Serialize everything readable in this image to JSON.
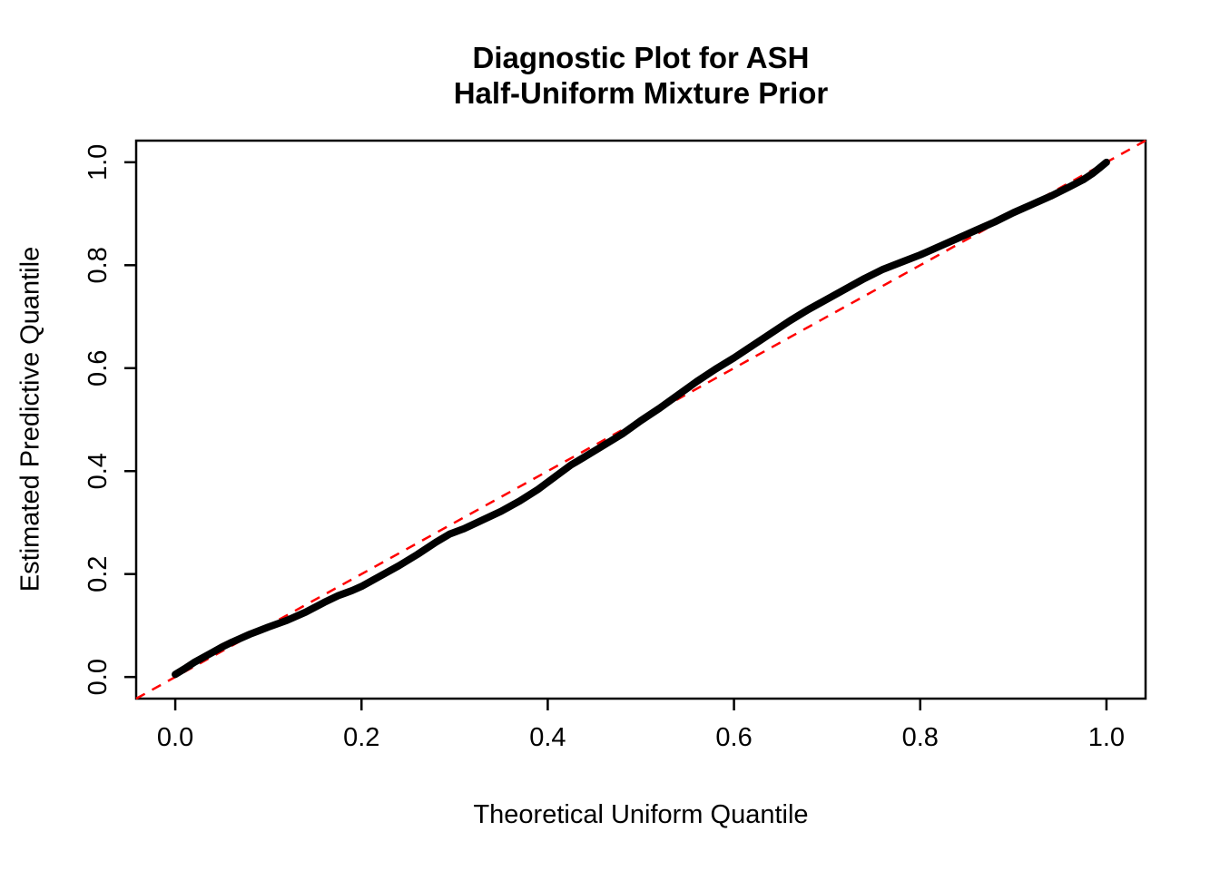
{
  "chart": {
    "title_line1": "Diagnostic Plot for ASH",
    "title_line2": "Half-Uniform Mixture Prior",
    "xlabel": "Theoretical Uniform Quantile",
    "ylabel": "Estimated Predictive Quantile"
  },
  "chart_data": {
    "type": "line",
    "title": "Diagnostic Plot for ASH Half-Uniform Mixture Prior",
    "xlabel": "Theoretical Uniform Quantile",
    "ylabel": "Estimated Predictive Quantile",
    "xlim": [
      -0.042,
      1.042
    ],
    "ylim": [
      -0.042,
      1.042
    ],
    "xticks": [
      0.0,
      0.2,
      0.4,
      0.6,
      0.8,
      1.0
    ],
    "yticks": [
      0.0,
      0.2,
      0.4,
      0.6,
      0.8,
      1.0
    ],
    "grid": false,
    "legend": "none",
    "frame_color": "#000000",
    "series": [
      {
        "name": "estimated-vs-theoretical-quantiles",
        "color": "#000000",
        "style": "thick-point-curve",
        "x": [
          0.0,
          0.01,
          0.02,
          0.03,
          0.04,
          0.05,
          0.06,
          0.07,
          0.08,
          0.09,
          0.1,
          0.12,
          0.14,
          0.16,
          0.175,
          0.19,
          0.2,
          0.22,
          0.24,
          0.26,
          0.28,
          0.295,
          0.31,
          0.33,
          0.35,
          0.37,
          0.39,
          0.41,
          0.425,
          0.44,
          0.46,
          0.48,
          0.5,
          0.52,
          0.54,
          0.56,
          0.58,
          0.6,
          0.62,
          0.64,
          0.66,
          0.68,
          0.7,
          0.72,
          0.74,
          0.76,
          0.78,
          0.8,
          0.82,
          0.84,
          0.86,
          0.88,
          0.9,
          0.92,
          0.94,
          0.96,
          0.975,
          0.985,
          0.992,
          1.0
        ],
        "y": [
          0.005,
          0.016,
          0.028,
          0.038,
          0.048,
          0.058,
          0.067,
          0.075,
          0.083,
          0.09,
          0.097,
          0.11,
          0.126,
          0.145,
          0.158,
          0.168,
          0.176,
          0.196,
          0.216,
          0.238,
          0.262,
          0.278,
          0.288,
          0.305,
          0.322,
          0.342,
          0.365,
          0.392,
          0.412,
          0.428,
          0.45,
          0.472,
          0.498,
          0.522,
          0.548,
          0.574,
          0.598,
          0.62,
          0.644,
          0.668,
          0.692,
          0.714,
          0.734,
          0.754,
          0.774,
          0.792,
          0.806,
          0.82,
          0.836,
          0.852,
          0.868,
          0.884,
          0.902,
          0.918,
          0.934,
          0.952,
          0.966,
          0.978,
          0.988,
          1.0
        ]
      }
    ],
    "reference_line": {
      "name": "y-equals-x",
      "intercept": 0,
      "slope": 1,
      "color": "#FF0000",
      "style": "dashed"
    }
  }
}
